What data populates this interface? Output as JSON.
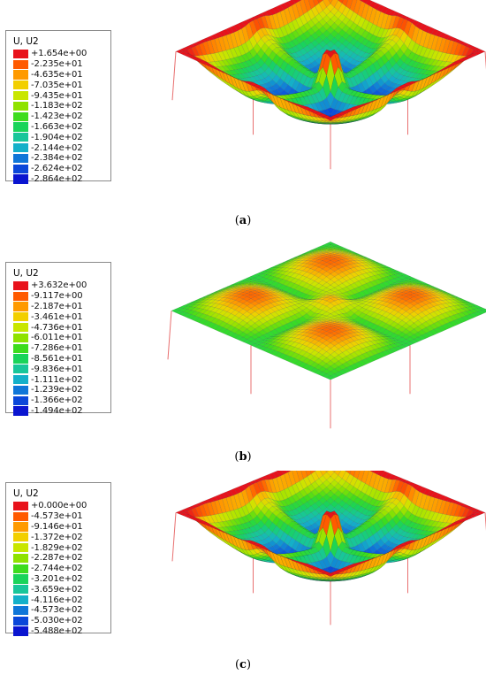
{
  "panels": [
    {
      "id": "a",
      "legend": {
        "title": "U, U2",
        "values": [
          "+1.654e+00",
          "-2.235e+01",
          "-4.635e+01",
          "-7.035e+01",
          "-9.435e+01",
          "-1.183e+02",
          "-1.423e+02",
          "-1.663e+02",
          "-1.904e+02",
          "-2.144e+02",
          "-2.384e+02",
          "-2.624e+02",
          "-2.864e+02"
        ]
      },
      "caption_open": "(",
      "caption_letter": "a",
      "caption_close": ")"
    },
    {
      "id": "b",
      "legend": {
        "title": "U, U2",
        "values": [
          "+3.632e+00",
          "-9.117e+00",
          "-2.187e+01",
          "-3.461e+01",
          "-4.736e+01",
          "-6.011e+01",
          "-7.286e+01",
          "-8.561e+01",
          "-9.836e+01",
          "-1.111e+02",
          "-1.239e+02",
          "-1.366e+02",
          "-1.494e+02"
        ]
      },
      "caption_open": "(",
      "caption_letter": "b",
      "caption_close": ")"
    },
    {
      "id": "c",
      "legend": {
        "title": "U, U2",
        "values": [
          "+0.000e+00",
          "-4.573e+01",
          "-9.146e+01",
          "-1.372e+02",
          "-1.829e+02",
          "-2.287e+02",
          "-2.744e+02",
          "-3.201e+02",
          "-3.659e+02",
          "-4.116e+02",
          "-4.573e+02",
          "-5.030e+02",
          "-5.488e+02"
        ]
      },
      "caption_open": "(",
      "caption_letter": "c",
      "caption_close": ")"
    }
  ],
  "colors": {
    "scale": [
      "#e8121b",
      "#ff5a00",
      "#ff9a00",
      "#f2cf00",
      "#c9e600",
      "#8fe200",
      "#3ddc1e",
      "#19d45a",
      "#18c69a",
      "#14b0c9",
      "#1076d8",
      "#0b47d9",
      "#0a15d0"
    ],
    "column": "#e87070",
    "mesh": "#1e2a38"
  }
}
